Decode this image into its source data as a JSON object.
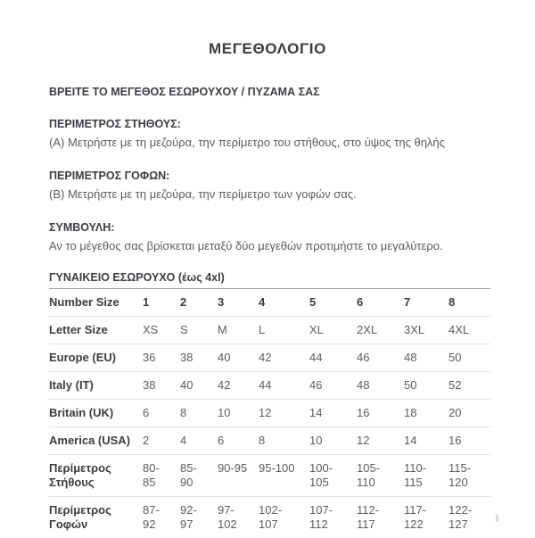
{
  "page": {
    "title": "ΜΕΓΕΘΟΛΟΓΙΟ",
    "subtitle": "ΒΡΕΙΤΕ ΤΟ ΜΕΓΕΘΟΣ ΕΣΩΡΟΥΧΟΥ / ΠΥΖΑΜΑ ΣΑΣ"
  },
  "sections": [
    {
      "heading": "ΠΕΡΙΜΕΤΡΟΣ ΣΤΗΘΟΥΣ:",
      "body": "(Α) Μετρήστε με τη μεζούρα, την περίμετρο του στήθους, στο ύψος της θηλής"
    },
    {
      "heading": "ΠΕΡΙΜΕΤΡΟΣ ΓΟΦΩΝ:",
      "body": "(Β) Μετρήστε με τη μεζούρα, την περίμετρο των γοφών σας."
    },
    {
      "heading": "ΣΥΜΒΟΥΛΗ:",
      "body": "Αν το μέγεθος σας βρίσκεται μεταξύ δύο μεγεθών προτιμήστε το μεγαλύτερο."
    }
  ],
  "size_table": {
    "title": "ΓΥΝΑΙΚΕΙΟ ΕΣΩΡΟΥΧΟ (έως 4xl)",
    "rows": [
      {
        "label": "Number Size",
        "bold_values": true,
        "values": [
          "1",
          "2",
          "3",
          "4",
          "5",
          "6",
          "7",
          "8"
        ]
      },
      {
        "label": "Letter Size",
        "bold_values": false,
        "values": [
          "XS",
          "S",
          "M",
          "L",
          "XL",
          "2XL",
          "3XL",
          "4XL"
        ]
      },
      {
        "label": "Europe (EU)",
        "bold_values": false,
        "values": [
          "36",
          "38",
          "40",
          "42",
          "44",
          "46",
          "48",
          "50"
        ]
      },
      {
        "label": "Italy (IT)",
        "bold_values": false,
        "values": [
          "38",
          "40",
          "42",
          "44",
          "46",
          "48",
          "50",
          "52"
        ]
      },
      {
        "label": "Britain (UK)",
        "bold_values": false,
        "values": [
          "6",
          "8",
          "10",
          "12",
          "14",
          "16",
          "18",
          "20"
        ]
      },
      {
        "label": "America (USA)",
        "bold_values": false,
        "values": [
          "2",
          "4",
          "6",
          "8",
          "10",
          "12",
          "14",
          "16"
        ]
      },
      {
        "label": "Περίμετρος\nΣτήθους",
        "bold_values": false,
        "values": [
          "80-\n85",
          "85-\n90",
          "90-95",
          "95-100",
          "100-\n105",
          "105-\n110",
          "110-\n115",
          "115-\n120"
        ]
      },
      {
        "label": "Περίμετρος\nΓοφών",
        "bold_values": false,
        "values": [
          "87-\n92",
          "92-\n97",
          "97-\n102",
          "102-\n107",
          "107-\n112",
          "112-\n117",
          "117-\n122",
          "122-\n127"
        ]
      }
    ]
  },
  "colors": {
    "heading_text": "#3d3d44",
    "body_text": "#5d5d61",
    "table_title_rule": "#9b9b9b",
    "row_divider": "#e2e2e2"
  }
}
